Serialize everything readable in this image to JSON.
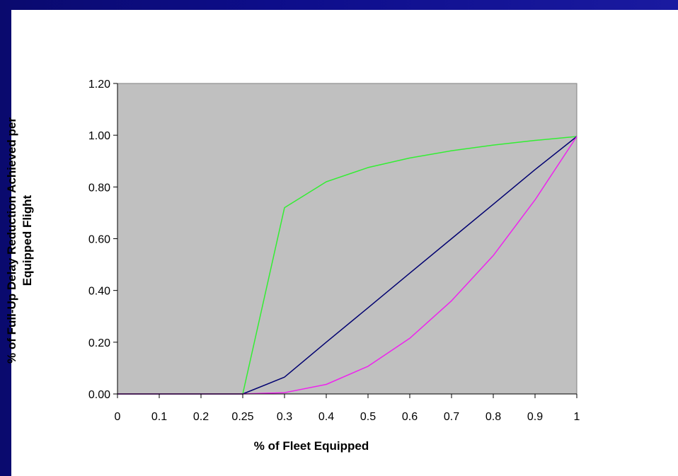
{
  "chart_data": {
    "type": "line",
    "title": "",
    "xlabel": "% of Fleet Equipped",
    "ylabel_lines": [
      "% of Full-Up Delay Reduction Achieved per",
      "Equipped Flight"
    ],
    "x_categories": [
      "0",
      "0.1",
      "0.2",
      "0.25",
      "0.3",
      "0.4",
      "0.5",
      "0.6",
      "0.7",
      "0.8",
      "0.9",
      "1"
    ],
    "ylim": [
      0,
      1.2
    ],
    "y_ticks": [
      "0.00",
      "0.20",
      "0.40",
      "0.60",
      "0.80",
      "1.00",
      "1.20"
    ],
    "y_tick_values": [
      0,
      0.2,
      0.4,
      0.6,
      0.8,
      1.0,
      1.2
    ],
    "grid": false,
    "plot_background": "#c0c0c0",
    "legend": "none",
    "series": [
      {
        "color": "#33ee33",
        "values": [
          0,
          0,
          0,
          0,
          0.72,
          0.82,
          0.875,
          0.912,
          0.94,
          0.962,
          0.98,
          0.995
        ]
      },
      {
        "color": "#000070",
        "values": [
          0,
          0,
          0,
          0,
          0.065,
          0.2,
          0.333,
          0.467,
          0.6,
          0.733,
          0.867,
          0.995
        ]
      },
      {
        "color": "#ee22ee",
        "values": [
          0,
          0,
          0,
          0,
          0.005,
          0.037,
          0.107,
          0.215,
          0.36,
          0.535,
          0.75,
          0.995
        ]
      }
    ]
  }
}
